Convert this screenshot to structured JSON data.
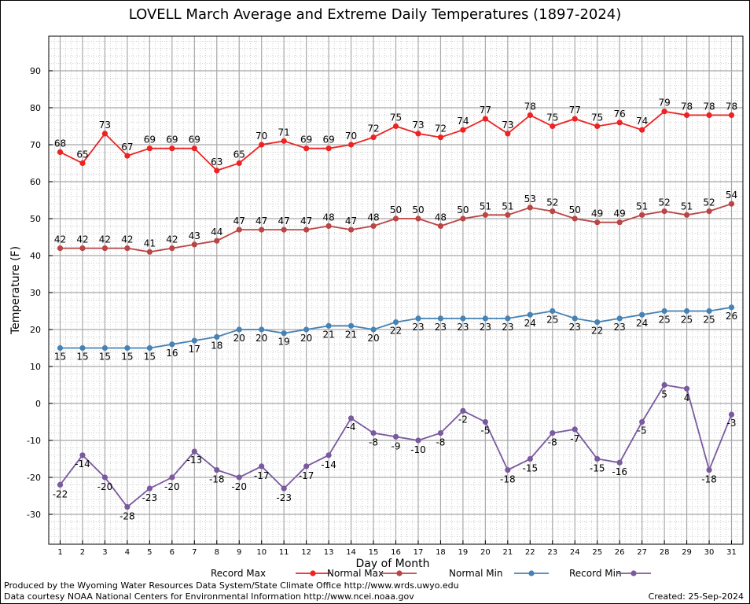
{
  "chart_data": {
    "type": "line",
    "title": "LOVELL March Average and Extreme Daily Temperatures (1897-2024)",
    "xlabel": "Day of Month",
    "ylabel": "Temperature (F)",
    "ylim": [
      -38,
      99
    ],
    "yticks": [
      -30,
      -20,
      -10,
      0,
      10,
      20,
      30,
      40,
      50,
      60,
      70,
      80,
      90
    ],
    "x": [
      1,
      2,
      3,
      4,
      5,
      6,
      7,
      8,
      9,
      10,
      11,
      12,
      13,
      14,
      15,
      16,
      17,
      18,
      19,
      20,
      21,
      22,
      23,
      24,
      25,
      26,
      27,
      28,
      29,
      30,
      31
    ],
    "grid": true,
    "legend_position": "bottom",
    "series": [
      {
        "name": "Record Max",
        "color": "#ee2222",
        "values": [
          68,
          65,
          73,
          67,
          69,
          69,
          69,
          63,
          65,
          70,
          71,
          69,
          69,
          70,
          72,
          75,
          73,
          72,
          74,
          77,
          73,
          78,
          75,
          77,
          75,
          76,
          74,
          79,
          78,
          78,
          78
        ]
      },
      {
        "name": "Normal Max",
        "color": "#bb4444",
        "values": [
          42,
          42,
          42,
          42,
          41,
          42,
          43,
          44,
          47,
          47,
          47,
          47,
          48,
          47,
          48,
          50,
          50,
          48,
          50,
          51,
          51,
          53,
          52,
          50,
          49,
          49,
          51,
          52,
          51,
          52,
          54
        ]
      },
      {
        "name": "Normal Min",
        "color": "#4682b4",
        "values": [
          15,
          15,
          15,
          15,
          15,
          16,
          17,
          18,
          20,
          20,
          19,
          20,
          21,
          21,
          20,
          22,
          23,
          23,
          23,
          23,
          23,
          24,
          25,
          23,
          22,
          23,
          24,
          25,
          25,
          25,
          26
        ]
      },
      {
        "name": "Record Min",
        "color": "#7a5a9e",
        "values": [
          -22,
          -14,
          -20,
          -28,
          -23,
          -20,
          -13,
          -18,
          -20,
          -17,
          -23,
          -17,
          -14,
          -4,
          -8,
          -9,
          -10,
          -8,
          -2,
          -5,
          -18,
          -15,
          -8,
          -7,
          -15,
          -16,
          -5,
          5,
          4,
          -18,
          -3
        ]
      }
    ]
  },
  "footer": {
    "produced_by": "Produced by the Wyoming Water Resources Data System/State Climate Office http://www.wrds.uwyo.edu",
    "courtesy": "Data courtesy NOAA National Centers for Environmental Information http://www.ncei.noaa.gov",
    "created": "Created: 25-Sep-2024"
  }
}
